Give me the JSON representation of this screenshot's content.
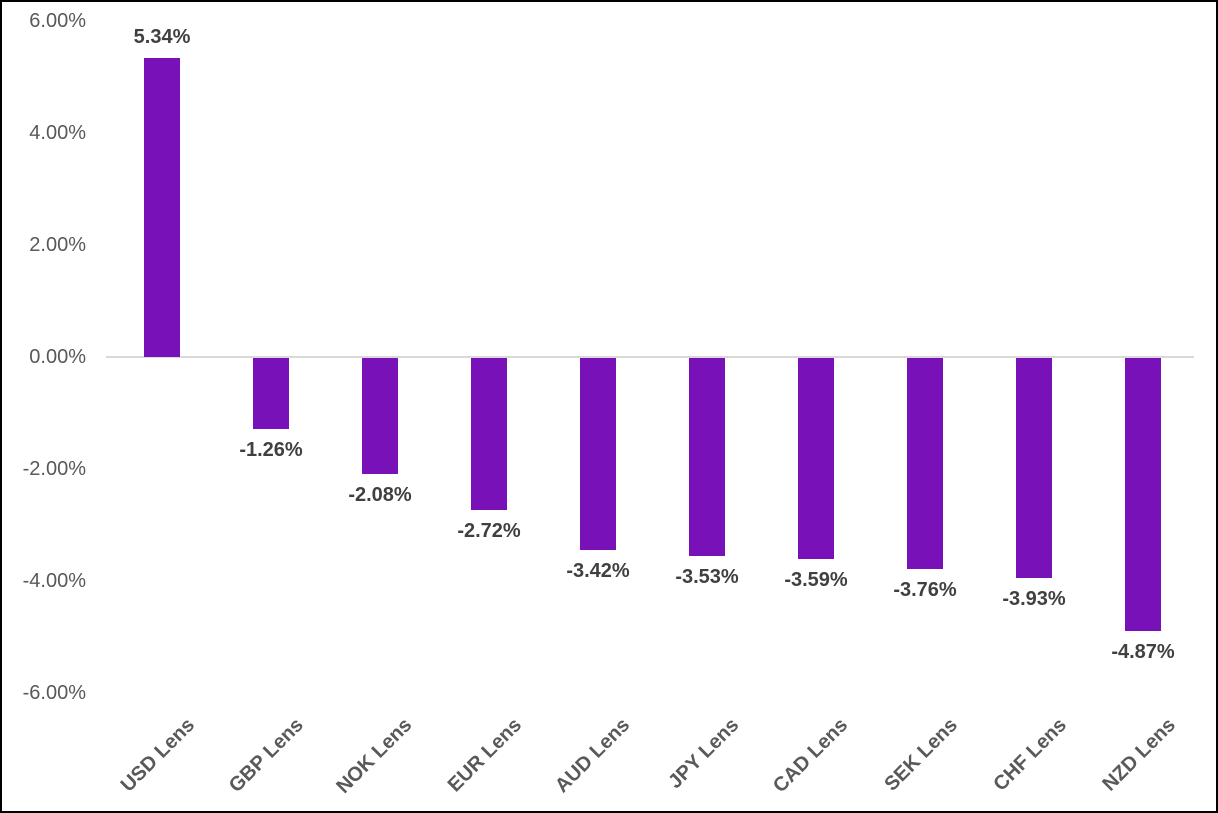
{
  "chart_data": {
    "type": "bar",
    "title": "",
    "xlabel": "",
    "ylabel": "",
    "categories": [
      "USD Lens",
      "GBP Lens",
      "NOK Lens",
      "EUR Lens",
      "AUD Lens",
      "JPY Lens",
      "CAD Lens",
      "SEK Lens",
      "CHF Lens",
      "NZD Lens"
    ],
    "values": [
      5.34,
      -1.26,
      -2.08,
      -2.72,
      -3.42,
      -3.53,
      -3.59,
      -3.76,
      -3.93,
      -4.87
    ],
    "data_labels": [
      "5.34%",
      "-1.26%",
      "-2.08%",
      "-2.72%",
      "-3.42%",
      "-3.53%",
      "-3.59%",
      "-3.76%",
      "-3.93%",
      "-4.87%"
    ],
    "ylim": [
      -6,
      6
    ],
    "ytick_step": 2,
    "yticks": [
      6,
      4,
      2,
      0,
      -2,
      -4,
      -6
    ],
    "ytick_labels": [
      "6.00%",
      "4.00%",
      "2.00%",
      "0.00%",
      "-2.00%",
      "-4.00%",
      "-6.00%"
    ],
    "grid": false,
    "legend": "none",
    "colors": {
      "bar": "#7812B8",
      "data_label": "#404040",
      "tick_label": "#595959",
      "category_label": "#595959",
      "axis_line": "#D9D9D9",
      "frame_border": "#000000",
      "background": "#FFFFFF"
    }
  }
}
